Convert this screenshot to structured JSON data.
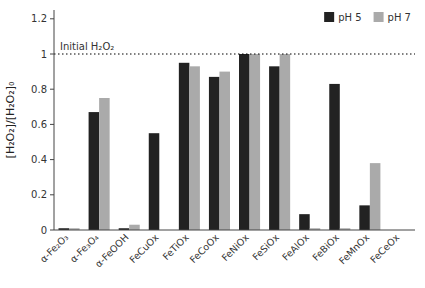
{
  "chart_data": {
    "type": "bar",
    "categories": [
      "α-Fe₂O₃",
      "α-Fe₃O₄",
      "α-FeOOH",
      "FeCuOx",
      "FeTiOx",
      "FeCoOx",
      "FeNiOx",
      "FeSiOx",
      "FeAlOx",
      "FeBiOx",
      "FeMnOx",
      "FeCeOx"
    ],
    "series": [
      {
        "name": "pH 5",
        "color": "#222222",
        "values": [
          0.01,
          0.67,
          0.01,
          0.55,
          0.95,
          0.87,
          1.0,
          0.93,
          0.09,
          0.83,
          0.14,
          0.0
        ]
      },
      {
        "name": "pH 7",
        "color": "#aaaaaa",
        "values": [
          0.01,
          0.75,
          0.03,
          0.0,
          0.93,
          0.9,
          1.0,
          1.0,
          0.01,
          0.01,
          0.38,
          0.0
        ]
      }
    ],
    "ylabel": "[H₂O₂]/[H₂O₂]₀",
    "ylim": [
      0,
      1.25
    ],
    "yticks": [
      0.0,
      0.2,
      0.4,
      0.6,
      0.8,
      1.0,
      1.2
    ],
    "annotations": [
      {
        "text": "Initial H₂O₂",
        "y": 1.0
      }
    ],
    "legend": "upper right",
    "grid": false
  }
}
